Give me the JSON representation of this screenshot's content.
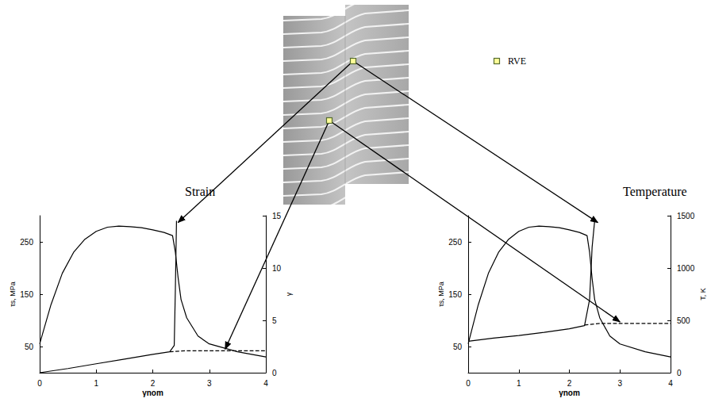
{
  "annotation": "RVE",
  "chart_data": [
    {
      "type": "line",
      "title": "Strain",
      "x_label": "γnom",
      "y_label": "τs, MPa",
      "y2_label": "γ",
      "xlim": [
        0,
        4
      ],
      "xticks": [
        0,
        1,
        2,
        3,
        4
      ],
      "ylim": [
        0,
        300
      ],
      "yticks": [
        50,
        150,
        250
      ],
      "y2lim": [
        0,
        15
      ],
      "y2ticks": [
        0,
        5,
        10,
        15
      ],
      "grid": false,
      "series": [
        {
          "x": [
            0,
            0.2,
            0.4,
            0.6,
            0.8,
            1.0,
            1.2,
            1.4,
            1.6,
            1.8,
            2.0,
            2.2,
            2.35,
            2.4,
            2.45,
            2.5,
            2.6,
            2.8,
            3.0,
            3.5,
            4.0
          ],
          "values": [
            55,
            130,
            190,
            230,
            255,
            270,
            278,
            280,
            279,
            277,
            273,
            268,
            262,
            230,
            180,
            140,
            105,
            70,
            55,
            40,
            30
          ],
          "color": "#000000",
          "line_style": "solid"
        },
        {
          "x": [
            0,
            0.5,
            1.0,
            1.5,
            2.0,
            2.3,
            2.38,
            2.4,
            2.42
          ],
          "values": [
            0,
            0.4,
            0.85,
            1.3,
            1.75,
            2.0,
            2.6,
            8,
            14.5
          ],
          "color": "#000000",
          "line_style": "solid",
          "axis": "y2"
        },
        {
          "x": [
            2.3,
            2.6,
            3.0,
            3.5,
            4.0
          ],
          "values": [
            2.0,
            2.1,
            2.1,
            2.1,
            2.1
          ],
          "color": "#000000",
          "line_style": "dashed",
          "axis": "y2"
        }
      ]
    },
    {
      "type": "line",
      "title": "Temperature",
      "x_label": "γnom",
      "y_label": "τs, MPa",
      "y2_label": "T, K",
      "xlim": [
        0,
        4
      ],
      "xticks": [
        0,
        1,
        2,
        3,
        4
      ],
      "ylim": [
        0,
        300
      ],
      "yticks": [
        50,
        150,
        250
      ],
      "y2lim": [
        0,
        1500
      ],
      "y2ticks": [
        0,
        500,
        1000,
        1500
      ],
      "grid": false,
      "series": [
        {
          "x": [
            0,
            0.2,
            0.4,
            0.6,
            0.8,
            1.0,
            1.2,
            1.4,
            1.6,
            1.8,
            2.0,
            2.2,
            2.35,
            2.4,
            2.45,
            2.5,
            2.6,
            2.8,
            3.0,
            3.5,
            4.0
          ],
          "values": [
            55,
            130,
            190,
            230,
            255,
            270,
            278,
            280,
            279,
            277,
            273,
            268,
            262,
            230,
            180,
            140,
            105,
            70,
            55,
            40,
            30
          ],
          "color": "#000000",
          "line_style": "solid"
        },
        {
          "x": [
            0,
            0.5,
            1.0,
            1.5,
            2.0,
            2.3,
            2.4,
            2.45,
            2.5
          ],
          "values": [
            300,
            330,
            355,
            385,
            420,
            450,
            700,
            1200,
            1450
          ],
          "color": "#000000",
          "line_style": "solid",
          "axis": "y2"
        },
        {
          "x": [
            2.3,
            2.6,
            3.0,
            3.5,
            4.0
          ],
          "values": [
            455,
            470,
            470,
            470,
            470
          ],
          "color": "#000000",
          "line_style": "dashed",
          "axis": "y2"
        }
      ]
    }
  ]
}
